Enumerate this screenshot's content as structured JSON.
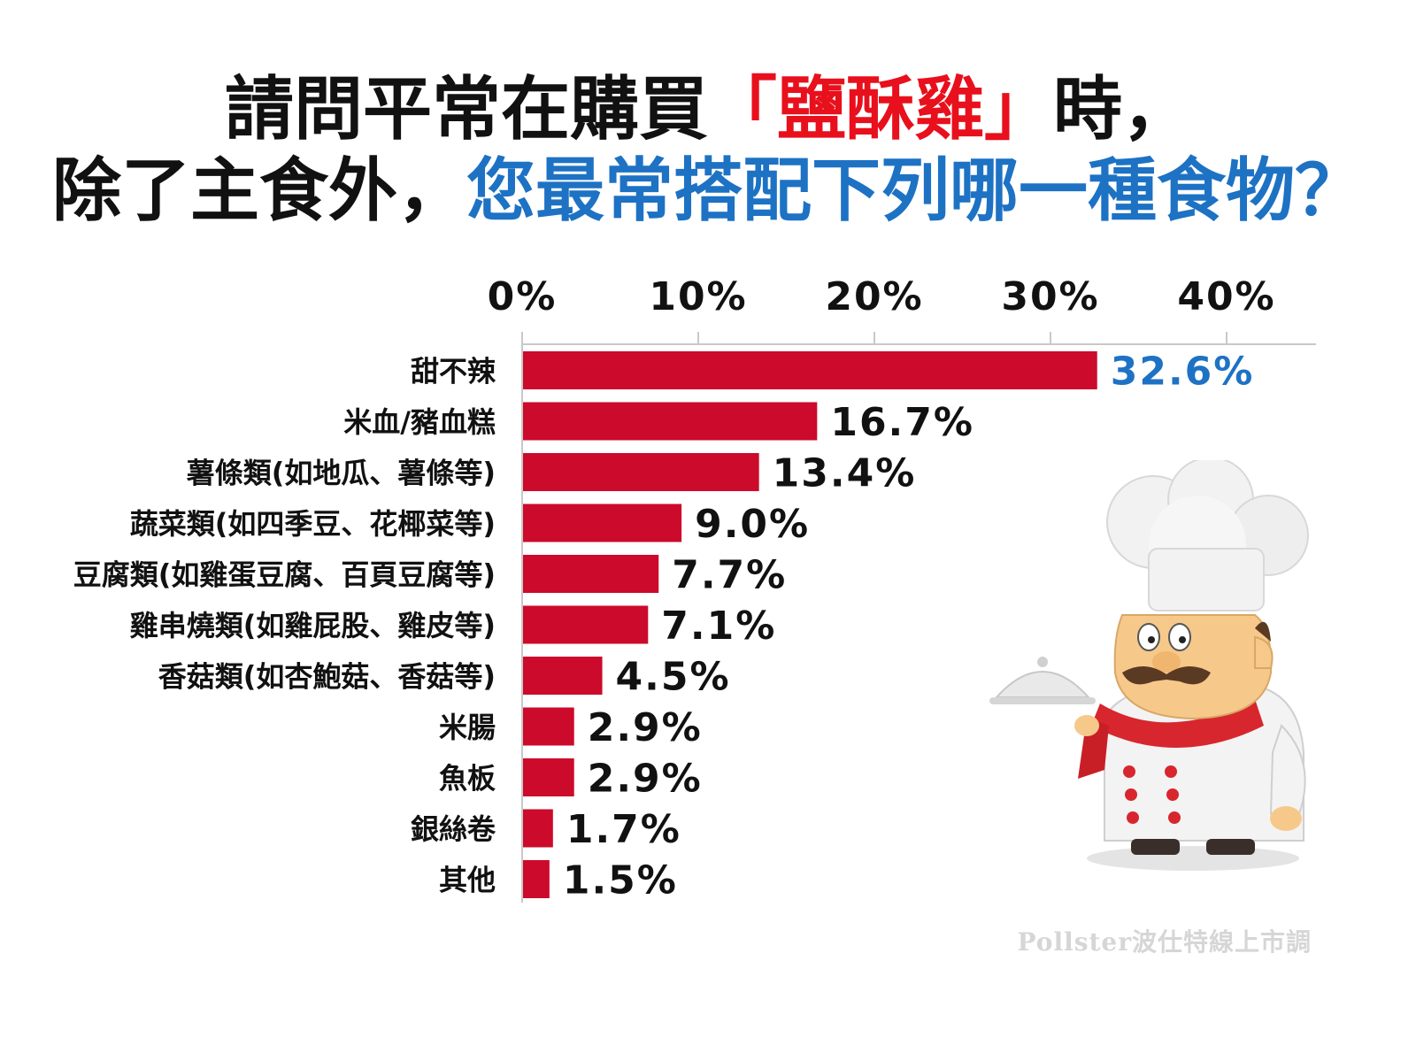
{
  "title": {
    "line1_a": "請問平常在購買",
    "line1_b": "「鹽酥雞」",
    "line1_c": "時，",
    "line2_a": "除了主食外，",
    "line2_b": "您最常搭配下列哪一種食物？"
  },
  "watermark": "Pollster波仕特線上市調",
  "colors": {
    "bar": "#cc0a2b",
    "highlight": "#1d72c4",
    "title_red": "#e8101c",
    "text": "#111111"
  },
  "chart_data": {
    "type": "bar",
    "orientation": "horizontal",
    "categories": [
      "甜不辣",
      "米血/豬血糕",
      "薯條類(如地瓜、薯條等)",
      "蔬菜類(如四季豆、花椰菜等)",
      "豆腐類(如雞蛋豆腐、百頁豆腐等)",
      "雞串燒類(如雞屁股、雞皮等)",
      "香菇類(如杏鮑菇、香菇等)",
      "米腸",
      "魚板",
      "銀絲卷",
      "其他"
    ],
    "values": [
      32.6,
      16.7,
      13.4,
      9.0,
      7.7,
      7.1,
      4.5,
      2.9,
      2.9,
      1.7,
      1.5
    ],
    "value_labels": [
      "32.6%",
      "16.7%",
      "13.4%",
      "9.0%",
      "7.7%",
      "7.1%",
      "4.5%",
      "2.9%",
      "2.9%",
      "1.7%",
      "1.5%"
    ],
    "xticks": [
      "0%",
      "10%",
      "20%",
      "30%",
      "40%"
    ],
    "xtick_values": [
      0,
      10,
      20,
      30,
      40
    ],
    "xlim": [
      0,
      45
    ],
    "axis_position": "top",
    "grid": false
  }
}
